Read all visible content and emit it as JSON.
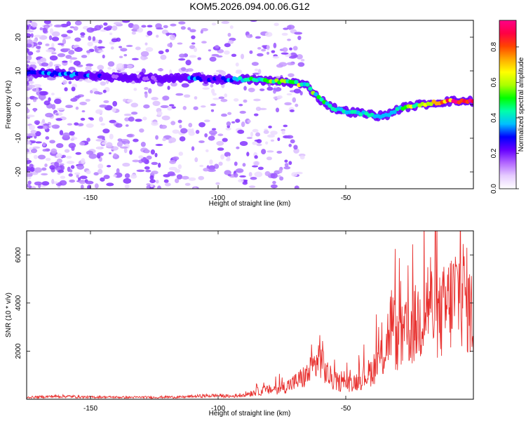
{
  "title": "KOM5.2026.094.00.06.G12",
  "chart_data": [
    {
      "type": "heatmap",
      "xlabel": "Height of straight line (km)",
      "ylabel": "Frequency (Hz)",
      "xlim": [
        -175,
        0
      ],
      "ylim": [
        -25,
        25
      ],
      "xticks": [
        -150,
        -100,
        -50
      ],
      "yticks": [
        -20,
        -10,
        0,
        10,
        20
      ],
      "colorbar": {
        "label": "Normalized spectral amplitude",
        "range": [
          0,
          0.95
        ],
        "ticks": [
          0.0,
          0.2,
          0.4,
          0.6,
          0.8
        ],
        "colors": [
          "#ffffff",
          "#e6ccff",
          "#b266ff",
          "#6600ff",
          "#0000ff",
          "#00bfff",
          "#00ffaa",
          "#00ff00",
          "#aaff00",
          "#ffff00",
          "#ffaa00",
          "#ff4400",
          "#ff0044",
          "#ff0088"
        ]
      },
      "ridge": {
        "x": [
          -175,
          -160,
          -150,
          -140,
          -130,
          -120,
          -110,
          -100,
          -90,
          -80,
          -70,
          -65,
          -60,
          -55,
          -50,
          -45,
          -40,
          -35,
          -30,
          -25,
          -20,
          -15,
          -10,
          -5,
          0
        ],
        "freq": [
          9.5,
          9,
          8.5,
          8,
          8,
          7.5,
          8,
          7.5,
          7.5,
          7,
          6.5,
          5.5,
          1.5,
          -1,
          -2,
          -2.5,
          -3,
          -3.5,
          -1.5,
          -0.5,
          0,
          0.5,
          1,
          1,
          1
        ],
        "amplitude": [
          0.3,
          0.35,
          0.3,
          0.2,
          0.2,
          0.2,
          0.3,
          0.25,
          0.4,
          0.5,
          0.55,
          0.5,
          0.45,
          0.45,
          0.4,
          0.4,
          0.4,
          0.35,
          0.45,
          0.55,
          0.6,
          0.7,
          0.8,
          0.85,
          0.8
        ]
      }
    },
    {
      "type": "line",
      "xlabel": "Height of straight line (km)",
      "ylabel": "SNR (10 * v/v)",
      "xlim": [
        -175,
        0
      ],
      "ylim": [
        0,
        7000
      ],
      "xticks": [
        -150,
        -100,
        -50
      ],
      "yticks": [
        2000,
        4000,
        6000
      ],
      "series": [
        {
          "name": "SNR",
          "color": "#e8312f",
          "x": [
            -175,
            -170,
            -165,
            -160,
            -155,
            -150,
            -145,
            -140,
            -135,
            -130,
            -125,
            -120,
            -115,
            -110,
            -105,
            -100,
            -95,
            -90,
            -85,
            -80,
            -75,
            -70,
            -65,
            -62,
            -60,
            -58,
            -55,
            -50,
            -45,
            -40,
            -35,
            -32,
            -30,
            -25,
            -20,
            -17,
            -15,
            -10,
            -5,
            -3,
            0
          ],
          "y": [
            100,
            120,
            150,
            160,
            130,
            110,
            120,
            110,
            100,
            110,
            100,
            120,
            110,
            150,
            180,
            200,
            150,
            250,
            400,
            500,
            600,
            900,
            1300,
            1800,
            2500,
            1500,
            1000,
            800,
            1000,
            1500,
            2500,
            4200,
            3000,
            3600,
            4500,
            5500,
            4000,
            5000,
            6000,
            5500,
            4200
          ]
        }
      ]
    }
  ]
}
